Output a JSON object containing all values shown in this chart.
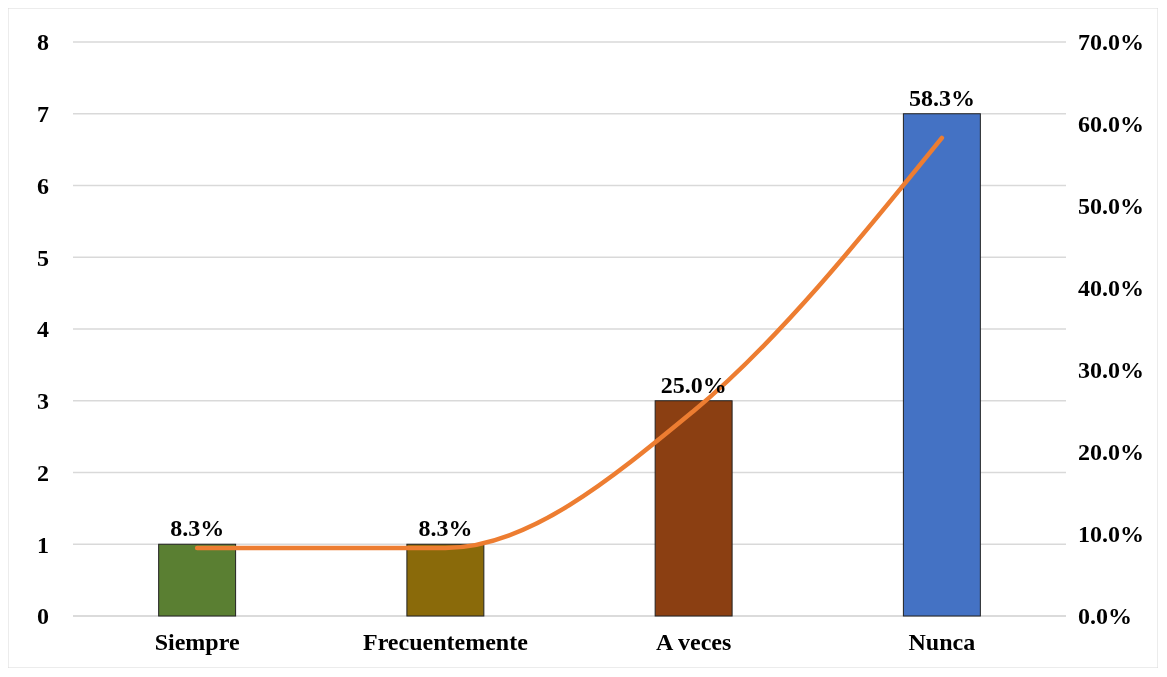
{
  "chart_data": {
    "type": "bar",
    "categories": [
      "Siempre",
      "Frecuentemente",
      "A veces",
      "Nunca"
    ],
    "series": [
      {
        "colors": [
          "#5a7f32",
          "#8a6a0a",
          "#8b3f12",
          "#4472c4"
        ],
        "values": [
          1,
          1,
          3,
          7
        ]
      },
      {
        "type": "line",
        "axis": "y2",
        "color": "#ed7d31",
        "values": [
          8.3,
          8.3,
          25.0,
          58.3
        ],
        "value_labels": [
          "8.3%",
          "8.3%",
          "25.0%",
          "58.3%"
        ],
        "marker": "none",
        "line_style": "solid"
      }
    ],
    "ylim": [
      0,
      8
    ],
    "yticks": [
      0,
      1,
      2,
      3,
      4,
      5,
      6,
      7,
      8
    ],
    "y2lim": [
      0,
      70
    ],
    "y2ticks": [
      {
        "value": 0,
        "label": "0.0%"
      },
      {
        "value": 10,
        "label": "10.0%"
      },
      {
        "value": 20,
        "label": "20.0%"
      },
      {
        "value": 30,
        "label": "30.0%"
      },
      {
        "value": 40,
        "label": "40.0%"
      },
      {
        "value": 50,
        "label": "50.0%"
      },
      {
        "value": 60,
        "label": "60.0%"
      },
      {
        "value": 70,
        "label": "70.0%"
      }
    ],
    "grid": "y"
  }
}
